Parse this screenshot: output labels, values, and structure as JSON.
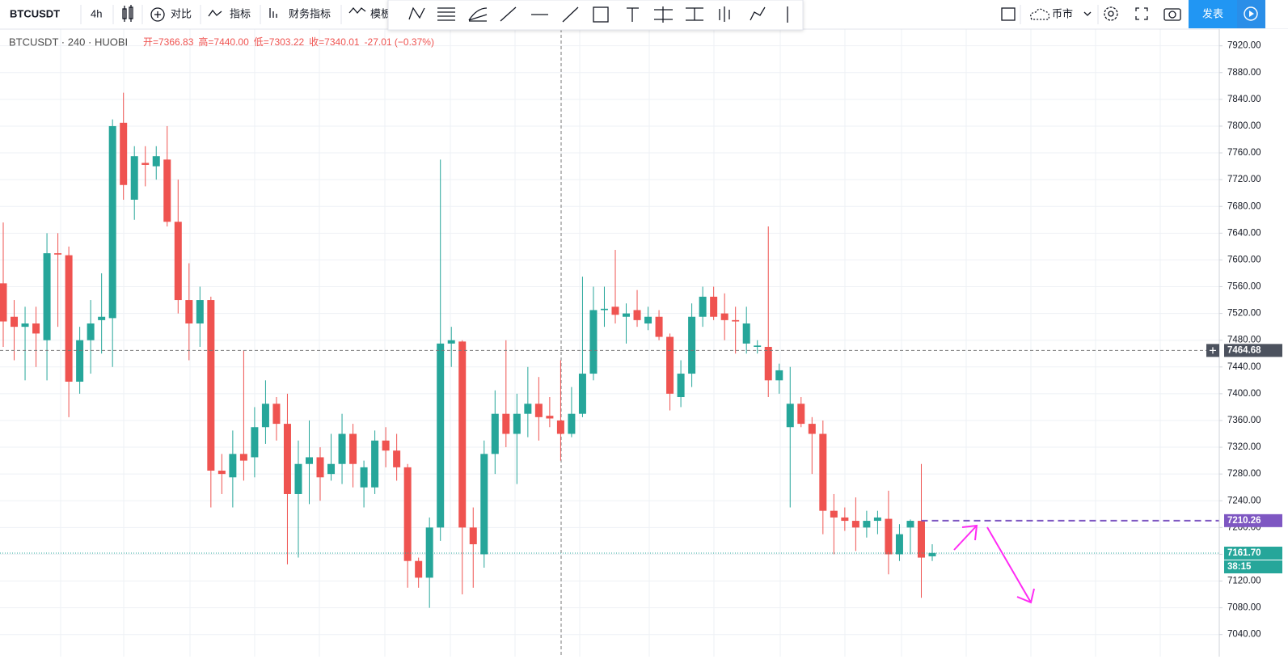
{
  "toolbar": {
    "symbol": "BTCUSDT",
    "interval": "4h",
    "compare": "对比",
    "indicators": "指标",
    "financials": "财务指标",
    "template": "模板",
    "market": "币市",
    "publish": "发表"
  },
  "chart_data": {
    "type": "candlestick",
    "title": "BTCUSDT · 240 · HUOBI",
    "legend": [
      "开=7366.83",
      "高=7440.00",
      "低=7303.22",
      "收=7340.01",
      "-27.01 (−0.37%)"
    ],
    "up_color": "#26a69a",
    "down_color": "#ef5350",
    "open": [
      7565,
      7515,
      7500,
      7505,
      7480,
      7610,
      7607,
      7418,
      7480,
      7510,
      7513,
      7805,
      7690,
      7745,
      7740,
      7750,
      7657,
      7540,
      7505,
      7540,
      7285,
      7275,
      7310,
      7305,
      7350,
      7385,
      7355,
      7250,
      7295,
      7305,
      7280,
      7295,
      7340,
      7260,
      7260,
      7330,
      7315,
      7290,
      7150,
      7125,
      7200,
      7475,
      7478,
      7200,
      7160,
      7310,
      7370,
      7340,
      7370,
      7385,
      7367,
      7360,
      7340,
      7370,
      7430,
      7525,
      7530,
      7515,
      7525,
      7505,
      7515,
      7485,
      7395,
      7430,
      7515,
      7545,
      7520,
      7510,
      7475,
      7470,
      7470,
      7420,
      7350,
      7385,
      7355,
      7340,
      7225,
      7215,
      7210,
      7200,
      7210,
      7213,
      7160,
      7200,
      7210,
      7157
    ],
    "high": [
      7656,
      7540,
      7530,
      7530,
      7640,
      7640,
      7620,
      7500,
      7540,
      7580,
      7810,
      7850,
      7770,
      7770,
      7770,
      7800,
      7720,
      7595,
      7560,
      7545,
      7310,
      7345,
      7465,
      7380,
      7420,
      7395,
      7400,
      7330,
      7360,
      7320,
      7340,
      7370,
      7355,
      7300,
      7345,
      7350,
      7340,
      7295,
      7155,
      7215,
      7750,
      7500,
      7480,
      7230,
      7330,
      7405,
      7480,
      7400,
      7440,
      7425,
      7395,
      7450,
      7410,
      7575,
      7560,
      7560,
      7615,
      7535,
      7555,
      7530,
      7525,
      7490,
      7450,
      7535,
      7560,
      7560,
      7550,
      7530,
      7530,
      7480,
      7650,
      7445,
      7440,
      7395,
      7365,
      7360,
      7250,
      7230,
      7245,
      7225,
      7225,
      7255,
      7205,
      7212,
      7295,
      7175
    ],
    "low": [
      7470,
      7450,
      7420,
      7440,
      7420,
      7500,
      7365,
      7400,
      7430,
      7460,
      7440,
      7690,
      7660,
      7710,
      7720,
      7650,
      7520,
      7450,
      7470,
      7230,
      7250,
      7230,
      7270,
      7275,
      7325,
      7330,
      7145,
      7155,
      7235,
      7240,
      7270,
      7265,
      7260,
      7230,
      7250,
      7290,
      7270,
      7110,
      7110,
      7080,
      7180,
      7440,
      7100,
      7110,
      7140,
      7280,
      7320,
      7265,
      7335,
      7330,
      7350,
      7300,
      7335,
      7365,
      7420,
      7500,
      7505,
      7475,
      7500,
      7495,
      7480,
      7375,
      7380,
      7410,
      7500,
      7510,
      7480,
      7460,
      7460,
      7460,
      7395,
      7400,
      7230,
      7350,
      7280,
      7190,
      7160,
      7195,
      7165,
      7185,
      7190,
      7130,
      7150,
      7160,
      7095,
      7150
    ],
    "close": [
      7508,
      7500,
      7505,
      7490,
      7610,
      7608,
      7418,
      7480,
      7505,
      7515,
      7800,
      7712,
      7755,
      7742,
      7755,
      7657,
      7540,
      7505,
      7540,
      7285,
      7280,
      7310,
      7300,
      7350,
      7385,
      7355,
      7250,
      7295,
      7305,
      7275,
      7295,
      7340,
      7295,
      7290,
      7330,
      7315,
      7290,
      7150,
      7125,
      7200,
      7475,
      7480,
      7200,
      7175,
      7310,
      7370,
      7340,
      7370,
      7385,
      7365,
      7363,
      7340,
      7370,
      7430,
      7525,
      7527,
      7518,
      7520,
      7510,
      7515,
      7485,
      7400,
      7430,
      7515,
      7545,
      7515,
      7510,
      7508,
      7505,
      7472,
      7420,
      7435,
      7385,
      7355,
      7340,
      7225,
      7215,
      7210,
      7200,
      7210,
      7215,
      7160,
      7190,
      7210,
      7155,
      7162
    ],
    "ylim": [
      7007,
      7945
    ],
    "yticks": [
      {
        "value": 7040,
        "label": "7040.00"
      },
      {
        "value": 7080,
        "label": "7080.00"
      },
      {
        "value": 7120,
        "label": "7120.00"
      },
      {
        "value": 7160,
        "label": "7160.00"
      },
      {
        "value": 7200,
        "label": "7200.00"
      },
      {
        "value": 7240,
        "label": "7240.00"
      },
      {
        "value": 7280,
        "label": "7280.00"
      },
      {
        "value": 7320,
        "label": "7320.00"
      },
      {
        "value": 7360,
        "label": "7360.00"
      },
      {
        "value": 7400,
        "label": "7400.00"
      },
      {
        "value": 7440,
        "label": "7440.00"
      },
      {
        "value": 7480,
        "label": "7480.00"
      },
      {
        "value": 7520,
        "label": "7520.00"
      },
      {
        "value": 7560,
        "label": "7560.00"
      },
      {
        "value": 7600,
        "label": "7600.00"
      },
      {
        "value": 7640,
        "label": "7640.00"
      },
      {
        "value": 7680,
        "label": "7680.00"
      },
      {
        "value": 7720,
        "label": "7720.00"
      },
      {
        "value": 7760,
        "label": "7760.00"
      },
      {
        "value": 7800,
        "label": "7800.00"
      },
      {
        "value": 7840,
        "label": "7840.00"
      },
      {
        "value": 7880,
        "label": "7880.00"
      },
      {
        "value": 7920,
        "label": "7920.00"
      }
    ],
    "grid": true,
    "crosshair_price": 7464.68,
    "alert_line": {
      "value": 7210.26,
      "color": "#7e57c2"
    },
    "last_price": {
      "value": 7161.7,
      "label": "7161.70",
      "countdown": "38:15",
      "color": "#26a69a"
    }
  }
}
